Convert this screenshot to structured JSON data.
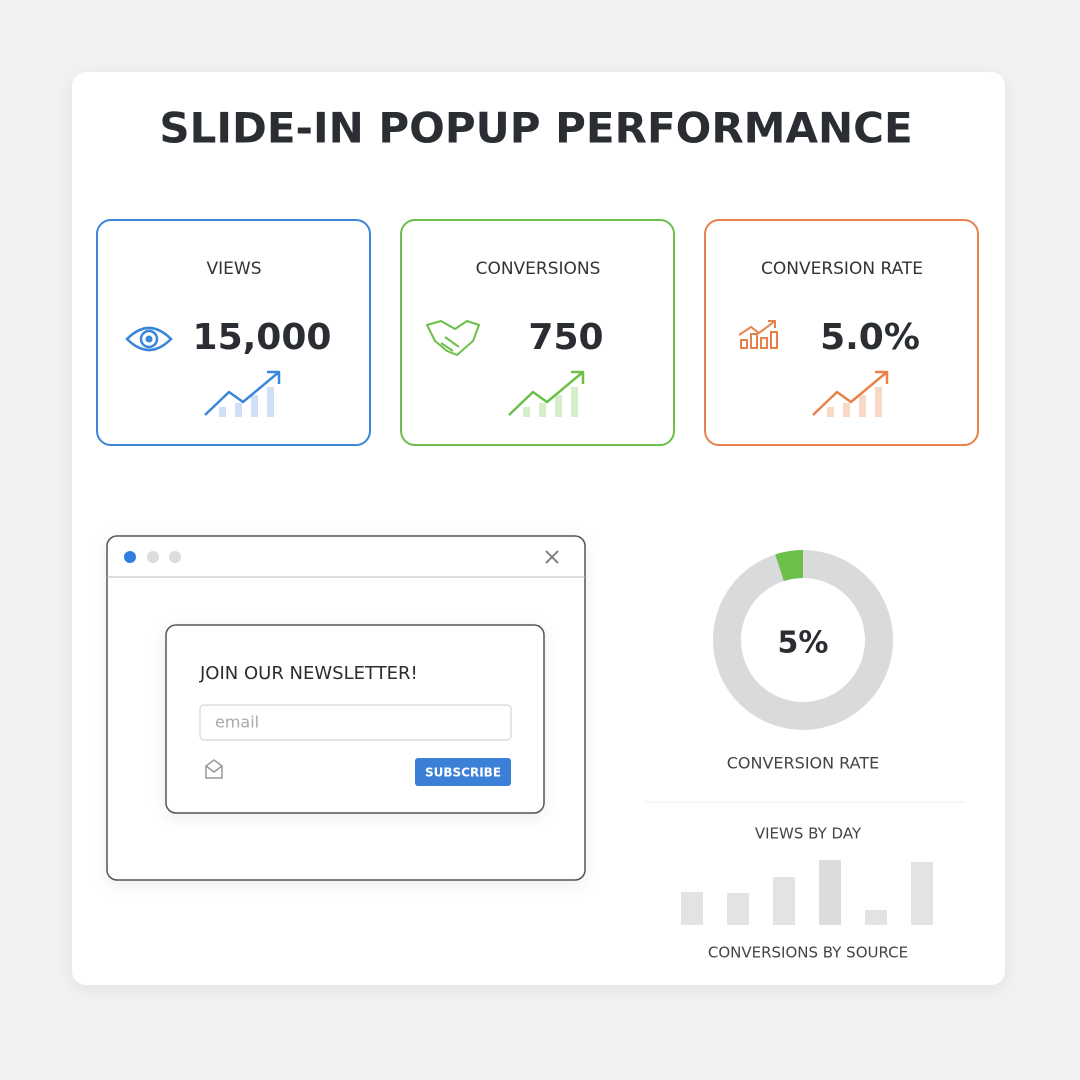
{
  "title": "SLIDE-IN POPUP PERFORMANCE",
  "stats": [
    {
      "label": "VIEWS",
      "value": "15,000"
    },
    {
      "label": "CONVERSIONS",
      "value": "750"
    },
    {
      "label": "CONVERSION RATE",
      "value": "5.0%"
    }
  ],
  "popup": {
    "heading": "JOIN OUR NEWSLETTER!",
    "placeholder": "email",
    "button": "SUBSCRIBE"
  },
  "donut": {
    "value": 5,
    "label": "5%",
    "caption": "CONVERSION RATE"
  },
  "bar_section": {
    "title": "VIEWS BY DAY",
    "footer": "CONVERSIONS BY SOURCE"
  }
}
